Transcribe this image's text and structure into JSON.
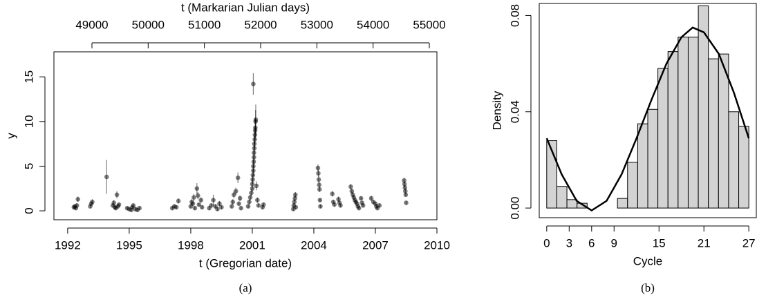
{
  "chart_data": [
    {
      "type": "scatter",
      "xlabel": "t (Gregorian date)",
      "ylabel": "y",
      "x2label": "t (Markarian Julian days)",
      "caption": "(a)",
      "xlim": [
        1991.33,
        2010.0
      ],
      "xticks": [
        1992,
        1995,
        1998,
        2001,
        2004,
        2007,
        2010
      ],
      "x2lim": [
        48324,
        55135
      ],
      "x2ticks": [
        49000,
        50000,
        51000,
        52000,
        53000,
        54000,
        55000
      ],
      "ylim": [
        -1.0,
        17.8
      ],
      "yticks": [
        0,
        5,
        10,
        15
      ],
      "color": "#000000",
      "point_alpha": 0.5,
      "x": [
        1992.3,
        1992.35,
        1992.4,
        1992.45,
        1992.5,
        1993.1,
        1993.15,
        1993.2,
        1993.9,
        1994.2,
        1994.25,
        1994.3,
        1994.35,
        1994.4,
        1994.45,
        1994.5,
        1994.9,
        1995.0,
        1995.1,
        1995.15,
        1995.2,
        1995.3,
        1995.4,
        1995.5,
        1997.1,
        1997.2,
        1997.3,
        1997.4,
        1998.0,
        1998.05,
        1998.1,
        1998.15,
        1998.2,
        1998.3,
        1998.35,
        1998.4,
        1998.5,
        1998.55,
        1998.9,
        1999.0,
        1999.1,
        1999.2,
        1999.3,
        1999.4,
        1999.5,
        2000.0,
        2000.05,
        2000.1,
        2000.2,
        2000.3,
        2000.35,
        2000.4,
        2000.45,
        2000.8,
        2000.85,
        2000.9,
        2000.95,
        2001.0,
        2001.0,
        2001.02,
        2001.03,
        2001.05,
        2001.05,
        2001.07,
        2001.08,
        2001.08,
        2001.1,
        2001.1,
        2001.12,
        2001.13,
        2001.14,
        2001.15,
        2001.16,
        2001.17,
        2001.05,
        2001.2,
        2001.25,
        2001.3,
        2001.5,
        2001.55,
        2003.0,
        2003.02,
        2003.05,
        2003.08,
        2003.1,
        2003.12,
        2004.2,
        2004.22,
        2004.24,
        2004.26,
        2004.28,
        2004.3,
        2004.32,
        2004.9,
        2004.95,
        2005.0,
        2005.2,
        2005.25,
        2005.3,
        2005.8,
        2005.85,
        2005.9,
        2005.95,
        2006.0,
        2006.05,
        2006.1,
        2006.15,
        2006.2,
        2006.3,
        2006.35,
        2006.4,
        2006.8,
        2006.9,
        2007.0,
        2007.05,
        2007.1,
        2007.2,
        2008.4,
        2008.42,
        2008.44,
        2008.46,
        2008.48,
        2008.5
      ],
      "values": [
        0.4,
        0.5,
        0.3,
        0.6,
        1.3,
        0.5,
        0.8,
        1.0,
        3.8,
        0.6,
        0.9,
        0.4,
        0.3,
        1.8,
        0.5,
        0.7,
        0.3,
        0.2,
        0.1,
        0.4,
        0.6,
        0.2,
        0.1,
        0.3,
        0.3,
        0.5,
        0.4,
        1.1,
        0.5,
        1.0,
        0.8,
        1.5,
        0.3,
        2.5,
        1.7,
        0.7,
        1.2,
        0.4,
        0.3,
        0.6,
        1.2,
        0.5,
        0.2,
        0.8,
        0.4,
        0.5,
        1.0,
        1.8,
        2.2,
        3.7,
        0.8,
        1.4,
        0.3,
        0.5,
        1.0,
        1.5,
        2.0,
        2.5,
        3.0,
        3.5,
        4.0,
        4.5,
        5.0,
        5.5,
        6.0,
        6.5,
        7.0,
        7.5,
        8.0,
        8.5,
        9.0,
        9.3,
        10.0,
        10.2,
        14.2,
        2.8,
        1.2,
        0.6,
        0.4,
        0.7,
        0.2,
        0.6,
        1.0,
        1.4,
        1.8,
        0.4,
        4.8,
        4.2,
        3.5,
        2.9,
        2.4,
        1.2,
        0.5,
        1.9,
        1.0,
        0.7,
        1.3,
        0.9,
        0.6,
        2.7,
        2.2,
        1.8,
        1.5,
        1.2,
        1.0,
        0.8,
        0.5,
        0.3,
        1.4,
        0.9,
        0.6,
        1.4,
        1.0,
        0.8,
        0.5,
        0.3,
        0.6,
        3.4,
        3.0,
        2.6,
        2.2,
        1.8,
        0.9
      ],
      "errors": [
        0.2,
        0.2,
        0.2,
        0.2,
        0.3,
        0.2,
        0.2,
        0.3,
        1.9,
        0.2,
        0.3,
        0.2,
        0.2,
        0.4,
        0.2,
        0.2,
        0.2,
        0.2,
        0.2,
        0.2,
        0.2,
        0.2,
        0.2,
        0.2,
        0.2,
        0.2,
        0.2,
        0.3,
        0.2,
        0.3,
        0.2,
        0.4,
        0.2,
        0.6,
        0.4,
        0.2,
        0.3,
        0.2,
        0.2,
        0.2,
        0.6,
        0.2,
        0.2,
        0.3,
        0.2,
        0.2,
        0.3,
        0.4,
        0.4,
        0.6,
        0.2,
        0.3,
        0.2,
        0.2,
        0.3,
        0.3,
        0.4,
        0.4,
        0.5,
        0.5,
        0.6,
        0.6,
        0.7,
        0.7,
        0.8,
        0.8,
        0.9,
        0.9,
        1.0,
        1.0,
        1.1,
        1.1,
        1.3,
        1.7,
        1.2,
        0.5,
        0.3,
        0.2,
        0.2,
        0.2,
        0.2,
        0.2,
        0.3,
        0.3,
        0.3,
        0.2,
        0.4,
        0.4,
        0.4,
        0.3,
        0.3,
        0.2,
        0.2,
        0.3,
        0.2,
        0.2,
        0.3,
        0.2,
        0.2,
        0.3,
        0.3,
        0.3,
        0.3,
        0.2,
        0.2,
        0.2,
        0.2,
        0.2,
        0.2,
        0.2,
        0.2,
        0.3,
        0.2,
        0.2,
        0.2,
        0.2,
        0.2,
        0.3,
        0.3,
        0.3,
        0.3,
        0.2,
        0.2
      ]
    },
    {
      "type": "histogram",
      "xlabel": "Cycle",
      "ylabel": "Density",
      "caption": "(b)",
      "xlim": [
        -1,
        28
      ],
      "xticks": [
        0,
        3,
        6,
        9,
        15,
        21,
        27
      ],
      "ylim": [
        -0.004,
        0.085
      ],
      "yticks": [
        {
          "value": 0,
          "label": "0.00"
        },
        {
          "value": 0.04,
          "label": "0.04"
        },
        {
          "value": 0.08,
          "label": "0.08"
        }
      ],
      "color": "#d3d3d3",
      "bins": [
        0,
        1.35,
        2.7,
        4.05,
        5.4,
        6.75,
        8.1,
        9.45,
        10.8,
        12.15,
        13.5,
        14.85,
        16.2,
        17.55,
        18.9,
        20.25,
        21.6,
        22.95,
        24.3,
        25.65,
        27
      ],
      "values": [
        0.028,
        0.009,
        0.0035,
        0.002,
        0,
        0,
        0,
        0.004,
        0.019,
        0.035,
        0.041,
        0.058,
        0.065,
        0.071,
        0.071,
        0.084,
        0.062,
        0.064,
        0.04,
        0.034
      ],
      "curve": {
        "color": "#000000",
        "x": [
          0,
          2,
          4,
          6,
          8,
          10,
          12,
          14,
          16,
          18,
          19.5,
          21,
          23,
          25,
          27
        ],
        "values": [
          0.029,
          0.014,
          0.003,
          -0.001,
          0.003,
          0.014,
          0.029,
          0.045,
          0.06,
          0.071,
          0.075,
          0.073,
          0.064,
          0.048,
          0.029
        ]
      }
    }
  ]
}
